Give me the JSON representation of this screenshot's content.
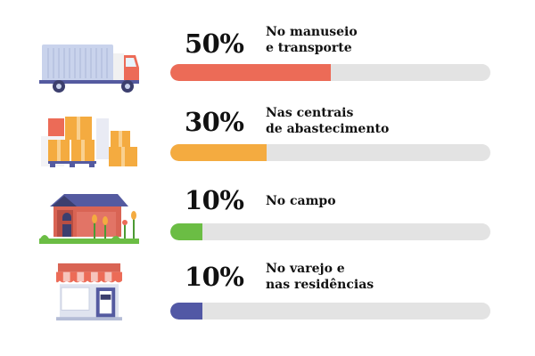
{
  "chart_data": {
    "type": "bar",
    "orientation": "horizontal",
    "categories": [
      "No manuseio\ne transporte",
      "Nas centrais\nde abastecimento",
      "No campo",
      "No varejo e\nnas residências"
    ],
    "values": [
      50,
      30,
      10,
      10
    ],
    "value_labels": [
      "50%",
      "30%",
      "10%",
      "10%"
    ],
    "colors": [
      "#ec6b57",
      "#f4ab40",
      "#6bbd44",
      "#5258a5"
    ],
    "icons": [
      "truck-icon",
      "boxes-icon",
      "farm-barn-icon",
      "shop-icon"
    ],
    "ylim": [
      0,
      100
    ],
    "grid": false,
    "legend": "none"
  }
}
